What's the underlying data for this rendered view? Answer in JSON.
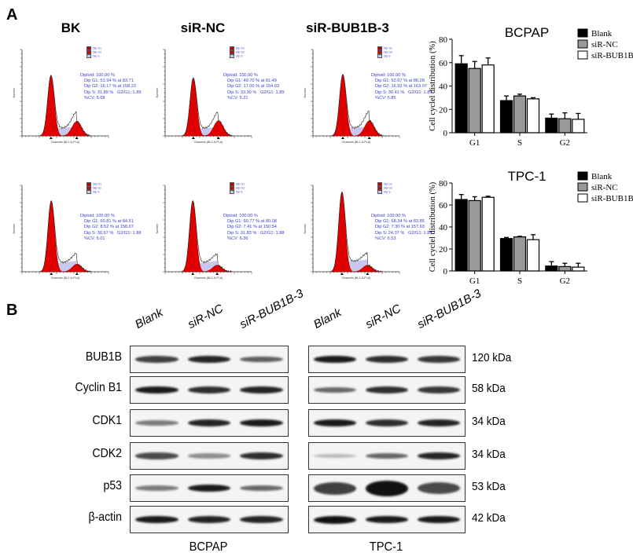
{
  "panel_a_label": "A",
  "panel_b_label": "B",
  "flow": {
    "column_titles": [
      "BK",
      "siR-NC",
      "siR-BUB1B-3"
    ],
    "legend": [
      "Dip G1",
      "Dip G2",
      "Dip S"
    ],
    "y_axis_label": "Number",
    "x_axis_label": "Channels (BL2-A-PI-A)",
    "panels": [
      {
        "row": "BCPAP",
        "group": "BK",
        "diploid": "Diploid: 100.00 %",
        "g1": "Dip G1: 51.94 % at 83.71",
        "g2": "Dip G2: 16.17 % at 158.22",
        "s": "Dip S: 31.89 %   G2/G1: 1.89",
        "cv": "%CV: 5.08",
        "g1_pct": 51.94,
        "g1_ch": 83.71,
        "g2_pct": 16.17,
        "g2_ch": 158.22
      },
      {
        "row": "BCPAP",
        "group": "siR-NC",
        "diploid": "Diploid: 100.00 %",
        "g1": "Dip G1: 49.70 % at 81.49",
        "g2": "Dip G2: 17.00 % at 154.03",
        "s": "Dip S: 33.30 %   G2/G1: 1.89",
        "cv": "%CV: 5.21",
        "g1_pct": 49.7,
        "g1_ch": 81.49,
        "g2_pct": 17.0,
        "g2_ch": 154.03
      },
      {
        "row": "BCPAP",
        "group": "siR-BUB1B-3",
        "diploid": "Diploid: 100.00 %",
        "g1": "Dip G1: 52.67 % at 86.28",
        "g2": "Dip G2: 16.92 % at 163.07",
        "s": "Dip S: 30.41 %   G2/G1: 1.89",
        "cv": "%CV: 5.85",
        "g1_pct": 52.67,
        "g1_ch": 86.28,
        "g2_pct": 16.92,
        "g2_ch": 163.07
      },
      {
        "row": "TPC-1",
        "group": "BK",
        "diploid": "Diploid: 100.00 %",
        "g1": "Dip G1: 60.81 % at 84.51",
        "g2": "Dip G2: 8.52 % at 158.67",
        "s": "Dip S: 30.67 %   G2/G1: 1.88",
        "cv": "%CV: 6.01",
        "g1_pct": 60.81,
        "g1_ch": 84.51,
        "g2_pct": 8.52,
        "g2_ch": 158.67
      },
      {
        "row": "TPC-1",
        "group": "siR-NC",
        "diploid": "Diploid: 100.00 %",
        "g1": "Dip G1: 60.77 % at 80.08",
        "g2": "Dip G2: 7.41 % at 150.54",
        "s": "Dip S: 31.83 %   G2/G1: 1.88",
        "cv": "%CV: 6.36",
        "g1_pct": 60.77,
        "g1_ch": 80.08,
        "g2_pct": 7.41,
        "g2_ch": 150.54
      },
      {
        "row": "TPC-1",
        "group": "siR-BUB1B-3",
        "diploid": "Diploid: 100.00 %",
        "g1": "Dip G1: 68.34 % at 83.85",
        "g2": "Dip G2: 7.30 % at 157.63",
        "s": "Dip S: 24.37 %   G2/G1: 1.88",
        "cv": "%CV: 6.53",
        "g1_pct": 68.34,
        "g1_ch": 83.85,
        "g2_pct": 7.3,
        "g2_ch": 157.63
      }
    ]
  },
  "chart_data": [
    {
      "type": "bar",
      "title": "BCPAP",
      "categories": [
        "G1",
        "S",
        "G2"
      ],
      "ylabel": "Cell cyclel distribution (%)",
      "xlabel": "",
      "ylim": [
        0,
        80
      ],
      "yticks": [
        "0",
        "20",
        "40",
        "60",
        "80"
      ],
      "legend_position": "top-right",
      "series": [
        {
          "name": "Blank",
          "color": "#000000",
          "values": [
            59,
            27.5,
            12.5
          ],
          "errors": [
            7,
            4,
            3.5
          ]
        },
        {
          "name": "siR-NC",
          "color": "#999999",
          "values": [
            55,
            31.5,
            12
          ],
          "errors": [
            6,
            1.5,
            5
          ]
        },
        {
          "name": "siR-BUB1B",
          "color": "#ffffff",
          "values": [
            58,
            29,
            11.5
          ],
          "errors": [
            6,
            1,
            5
          ]
        }
      ]
    },
    {
      "type": "bar",
      "title": "TPC-1",
      "categories": [
        "G1",
        "S",
        "G2"
      ],
      "ylabel": "Cell cyclel distribution (%)",
      "xlabel": "",
      "ylim": [
        0,
        80
      ],
      "yticks": [
        "0",
        "20",
        "40",
        "60",
        "80"
      ],
      "legend_position": "top-right",
      "series": [
        {
          "name": "Blank",
          "color": "#000000",
          "values": [
            65,
            29.5,
            4.5
          ],
          "errors": [
            4.5,
            1,
            4
          ]
        },
        {
          "name": "siR-NC",
          "color": "#999999",
          "values": [
            64,
            31,
            4
          ],
          "errors": [
            3.5,
            0.5,
            3
          ]
        },
        {
          "name": "siR-BUB1B",
          "color": "#ffffff",
          "values": [
            67,
            28.5,
            3.5
          ],
          "errors": [
            1,
            4.5,
            3.5
          ]
        }
      ]
    }
  ],
  "western": {
    "lanes": [
      "Blank",
      "siR-NC",
      "siR-BUB1B-3"
    ],
    "cell_lines": [
      "BCPAP",
      "TPC-1"
    ],
    "proteins": [
      {
        "name": "BUB1B",
        "kda": "120 kDa",
        "bcpap": [
          0.75,
          0.9,
          0.6
        ],
        "tpc1": [
          0.95,
          0.85,
          0.8
        ]
      },
      {
        "name": "Cyclin B1",
        "kda": "58 kDa",
        "bcpap": [
          0.95,
          0.85,
          0.9
        ],
        "tpc1": [
          0.55,
          0.85,
          0.8
        ]
      },
      {
        "name": "CDK1",
        "kda": "34 kDa",
        "bcpap": [
          0.45,
          0.9,
          0.95
        ],
        "tpc1": [
          0.95,
          0.85,
          0.9
        ]
      },
      {
        "name": "CDK2",
        "kda": "34 kDa",
        "bcpap": [
          0.7,
          0.35,
          0.85
        ],
        "tpc1": [
          0.12,
          0.55,
          0.9
        ]
      },
      {
        "name": "p53",
        "kda": "53 kDa",
        "bcpap": [
          0.45,
          0.95,
          0.55
        ],
        "tpc1": [
          0.75,
          1.0,
          0.7
        ]
      },
      {
        "name": "β-actin",
        "kda": "42 kDa",
        "bcpap": [
          0.95,
          0.9,
          0.9
        ],
        "tpc1": [
          1.0,
          0.95,
          0.95
        ]
      }
    ]
  }
}
